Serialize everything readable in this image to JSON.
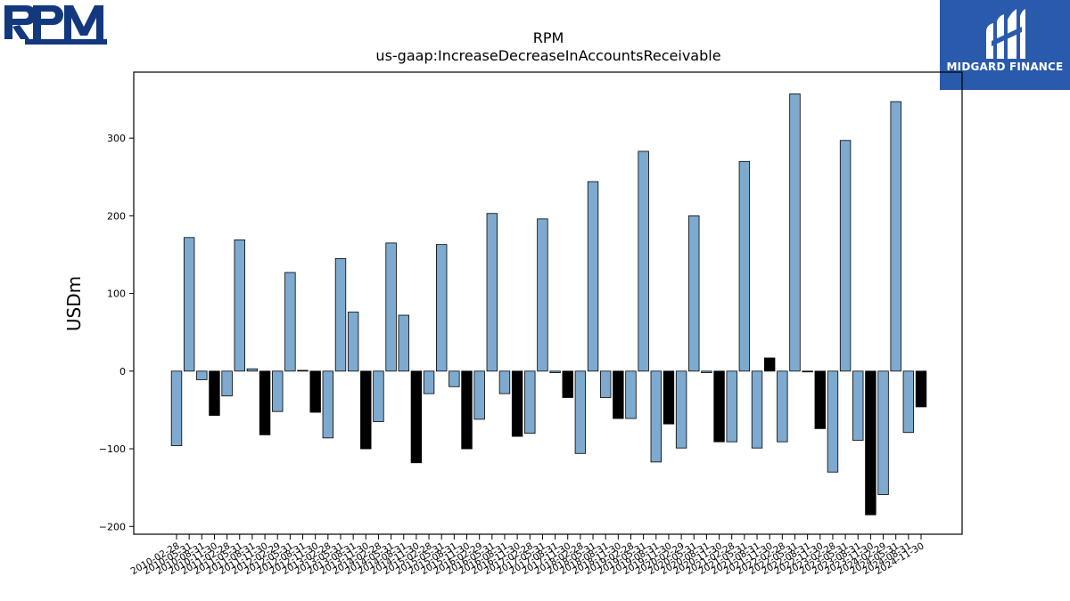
{
  "logos": {
    "left_text": "RPM",
    "right_text": "MIDGARD FINANCE",
    "colors": {
      "rpm_blue": "#13387e",
      "midgard_bg": "#2a5aab"
    }
  },
  "chart_data": {
    "type": "bar",
    "title": "RPM",
    "subtitle": "us-gaap:IncreaseDecreaseInAccountsReceivable",
    "xlabel": "",
    "ylabel": "USDm",
    "ylim": [
      -210,
      385
    ],
    "yticks": [
      -200,
      -100,
      0,
      100,
      200,
      300
    ],
    "grid": false,
    "colors": {
      "quarter": "#7eaad0",
      "annual": "#000000",
      "edge": "#000000"
    },
    "categories": [
      "2010-02-28",
      "2010-05-31",
      "2010-08-31",
      "2010-11-30",
      "2011-02-28",
      "2011-05-31",
      "2011-08-31",
      "2011-11-30",
      "2012-02-29",
      "2012-05-31",
      "2012-08-31",
      "2012-11-30",
      "2013-02-28",
      "2013-05-31",
      "2013-08-31",
      "2013-11-30",
      "2014-02-28",
      "2014-05-31",
      "2014-08-31",
      "2014-11-30",
      "2015-02-28",
      "2015-05-31",
      "2015-08-31",
      "2015-11-30",
      "2016-02-29",
      "2016-05-31",
      "2016-08-31",
      "2016-11-30",
      "2017-02-28",
      "2017-05-31",
      "2017-08-31",
      "2017-11-30",
      "2018-02-28",
      "2018-05-31",
      "2018-08-31",
      "2018-11-30",
      "2019-02-28",
      "2019-05-31",
      "2019-08-31",
      "2019-11-30",
      "2020-02-29",
      "2020-05-31",
      "2020-08-31",
      "2020-11-30",
      "2021-02-28",
      "2021-05-31",
      "2021-08-31",
      "2021-11-30",
      "2022-02-28",
      "2022-05-31",
      "2022-08-31",
      "2022-11-30",
      "2023-02-28",
      "2023-05-31",
      "2023-08-31",
      "2023-11-30",
      "2024-02-29",
      "2024-05-31",
      "2024-08-31",
      "2024-11-30"
    ],
    "values": [
      -96,
      172,
      -11,
      -57,
      -32,
      169,
      3,
      -82,
      -52,
      127,
      1,
      -53,
      -86,
      145,
      76,
      -100,
      -65,
      165,
      72,
      -118,
      -29,
      163,
      -20,
      -100,
      -62,
      203,
      -29,
      -84,
      -80,
      196,
      -2,
      -34,
      -106,
      244,
      -34,
      -61,
      -61,
      283,
      -117,
      -68,
      -99,
      200,
      -2,
      -91,
      -91,
      270,
      -99,
      17,
      -91,
      357,
      -1,
      -74,
      -130,
      297,
      -89,
      -185,
      -159,
      347,
      -79,
      -46
    ],
    "annual_flags": [
      0,
      0,
      0,
      1,
      0,
      0,
      0,
      1,
      0,
      0,
      0,
      1,
      0,
      0,
      0,
      1,
      0,
      0,
      0,
      1,
      0,
      0,
      0,
      1,
      0,
      0,
      0,
      1,
      0,
      0,
      0,
      1,
      0,
      0,
      0,
      1,
      0,
      0,
      0,
      1,
      0,
      0,
      0,
      1,
      0,
      0,
      0,
      1,
      0,
      0,
      0,
      1,
      0,
      0,
      0,
      1,
      0,
      0,
      0,
      1
    ]
  }
}
